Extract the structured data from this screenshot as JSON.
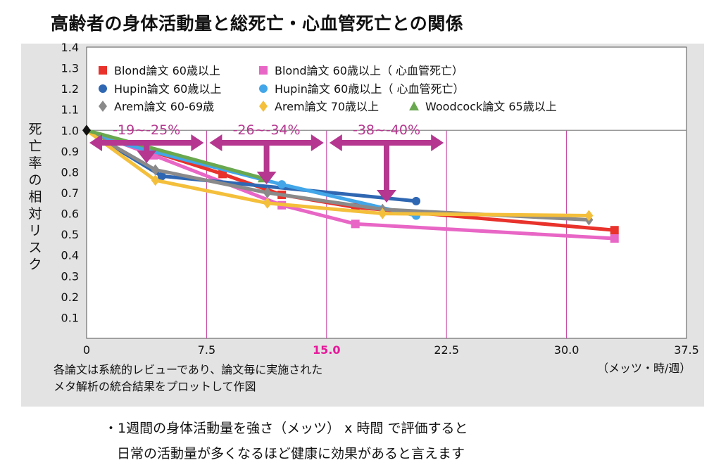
{
  "title": "高齢者の身体活動量と総死亡・心血管死亡との関係",
  "note_line1": "各論文は系統的レビューであり、論文毎に実施された",
  "note_line2": "メタ解析の統合結果をプロットして作図",
  "x_unit": "（メッツ・時/週）",
  "bottom_line1": "・1週間の身体活動量を強さ（メッツ） x 時間 で評価すると",
  "bottom_line2": "日常の活動量が多くなるほど健康に効果があると言えます",
  "colors": {
    "accent": "#b5378f",
    "highlight_tick": "#e6199a"
  },
  "chart_data": {
    "type": "line",
    "title": "",
    "xlabel": "（メッツ・時/週）",
    "ylabel": "死亡率の相対リスク",
    "xlim": [
      0,
      37.5
    ],
    "ylim": [
      0,
      1.4
    ],
    "xticks": [
      "0",
      "7.5",
      "15.0",
      "22.5",
      "30.0",
      "37.5"
    ],
    "xtick_values": [
      0,
      7.5,
      15,
      22.5,
      30,
      37.5
    ],
    "highlight_xtick": "15.0",
    "yticks": [
      "0.1",
      "0.2",
      "0.3",
      "0.4",
      "0.5",
      "0.6",
      "0.7",
      "0.8",
      "0.9",
      "1.0",
      "1.1",
      "1.2",
      "1.3",
      "1.4"
    ],
    "ytick_values": [
      0.1,
      0.2,
      0.3,
      0.4,
      0.5,
      0.6,
      0.7,
      0.8,
      0.9,
      1.0,
      1.1,
      1.2,
      1.3,
      1.4
    ],
    "reference_line": 1.0,
    "gridlines_x": [
      7.5,
      15,
      22.5,
      30
    ],
    "legend_position": "top-left",
    "series": [
      {
        "name": "Blond論文 60歳以上",
        "color": "#e8322b",
        "marker": "square",
        "points": [
          [
            0,
            1.0
          ],
          [
            8.5,
            0.79
          ],
          [
            12.2,
            0.69
          ],
          [
            16.8,
            0.63
          ],
          [
            33,
            0.52
          ]
        ]
      },
      {
        "name": "Blond論文 60歳以上（ 心血管死亡）",
        "color": "#e866c5",
        "marker": "square",
        "points": [
          [
            0,
            1.0
          ],
          [
            4.2,
            0.88
          ],
          [
            12.2,
            0.64
          ],
          [
            16.8,
            0.55
          ],
          [
            33,
            0.48
          ]
        ]
      },
      {
        "name": "Hupin論文 60歳以上",
        "color": "#2f67b2",
        "marker": "circle",
        "points": [
          [
            0,
            1.0
          ],
          [
            4.7,
            0.78
          ],
          [
            20.6,
            0.66
          ]
        ]
      },
      {
        "name": "Hupin論文 60歳以上（ 心血管死亡）",
        "color": "#42a6e8",
        "marker": "circle",
        "points": [
          [
            0,
            1.0
          ],
          [
            1.0,
            0.96
          ],
          [
            12.2,
            0.74
          ],
          [
            20.6,
            0.59
          ]
        ]
      },
      {
        "name": "Arem論文 60-69歳",
        "color": "#8a8a8a",
        "marker": "diamond",
        "points": [
          [
            0,
            1.0
          ],
          [
            4.3,
            0.81
          ],
          [
            11.3,
            0.7
          ],
          [
            18.5,
            0.62
          ],
          [
            31.4,
            0.57
          ]
        ]
      },
      {
        "name": "Arem論文 70歳以上",
        "color": "#f4bf3b",
        "marker": "diamond",
        "points": [
          [
            0,
            1.0
          ],
          [
            4.3,
            0.76
          ],
          [
            11.3,
            0.65
          ],
          [
            18.5,
            0.6
          ],
          [
            31.4,
            0.59
          ]
        ]
      },
      {
        "name": "Woodcock論文 65歳以上",
        "color": "#6aa84f",
        "marker": "triangle",
        "points": [
          [
            0,
            1.0
          ],
          [
            11.0,
            0.77
          ]
        ]
      }
    ],
    "annotations": [
      {
        "text": "-19~-25%",
        "x_from": 0,
        "x_to": 7.5,
        "arrow_x": 3.75
      },
      {
        "text": "-26~-34%",
        "x_from": 7.5,
        "x_to": 15,
        "arrow_x": 11.25
      },
      {
        "text": "-38~-40%",
        "x_from": 15,
        "x_to": 22.5,
        "arrow_x": 18.75
      }
    ]
  }
}
